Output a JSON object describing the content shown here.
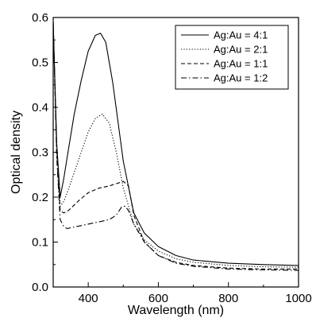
{
  "chart_data": {
    "type": "line",
    "xlabel": "Wavelength (nm)",
    "ylabel": "Optical density",
    "xlim": [
      300,
      1000
    ],
    "ylim": [
      0.0,
      0.6
    ],
    "xticks": [
      400,
      600,
      800,
      1000
    ],
    "xtick_labels": [
      "400",
      "600",
      "800",
      "1000"
    ],
    "yticks": [
      0.0,
      0.1,
      0.2,
      0.3,
      0.4,
      0.5,
      0.6
    ],
    "ytick_labels": [
      "0.0",
      "0.1",
      "0.2",
      "0.3",
      "0.4",
      "0.5",
      "0.6"
    ],
    "grid": false,
    "legend_position": "top-right",
    "series": [
      {
        "name": "Ag:Au = 4:1",
        "style": "solid",
        "x": [
          300,
          310,
          320,
          330,
          340,
          360,
          380,
          400,
          420,
          435,
          450,
          470,
          500,
          530,
          560,
          600,
          650,
          700,
          800,
          900,
          1000
        ],
        "y": [
          0.59,
          0.32,
          0.2,
          0.24,
          0.29,
          0.385,
          0.46,
          0.525,
          0.56,
          0.565,
          0.545,
          0.455,
          0.28,
          0.165,
          0.12,
          0.09,
          0.07,
          0.06,
          0.053,
          0.05,
          0.048
        ]
      },
      {
        "name": "Ag:Au = 2:1",
        "style": "dotted",
        "x": [
          300,
          310,
          320,
          330,
          340,
          360,
          380,
          400,
          420,
          440,
          460,
          480,
          500,
          530,
          560,
          600,
          650,
          700,
          800,
          900,
          1000
        ],
        "y": [
          0.59,
          0.32,
          0.18,
          0.19,
          0.21,
          0.255,
          0.3,
          0.345,
          0.375,
          0.385,
          0.365,
          0.3,
          0.22,
          0.14,
          0.105,
          0.08,
          0.063,
          0.055,
          0.048,
          0.045,
          0.044
        ]
      },
      {
        "name": "Ag:Au = 1:1",
        "style": "dashed",
        "x": [
          300,
          310,
          320,
          330,
          340,
          350,
          370,
          400,
          430,
          460,
          480,
          500,
          515,
          530,
          560,
          600,
          650,
          700,
          800,
          900,
          1000
        ],
        "y": [
          0.59,
          0.3,
          0.17,
          0.165,
          0.168,
          0.175,
          0.19,
          0.21,
          0.22,
          0.225,
          0.23,
          0.235,
          0.225,
          0.16,
          0.1,
          0.07,
          0.055,
          0.048,
          0.042,
          0.04,
          0.04
        ]
      },
      {
        "name": "Ag:Au = 1:2",
        "style": "dashdot",
        "x": [
          300,
          310,
          320,
          330,
          340,
          350,
          370,
          400,
          430,
          460,
          480,
          495,
          505,
          515,
          530,
          560,
          600,
          650,
          700,
          800,
          900,
          1000
        ],
        "y": [
          0.59,
          0.29,
          0.15,
          0.135,
          0.13,
          0.132,
          0.135,
          0.14,
          0.145,
          0.15,
          0.16,
          0.178,
          0.18,
          0.17,
          0.14,
          0.1,
          0.07,
          0.053,
          0.046,
          0.04,
          0.038,
          0.037
        ]
      }
    ]
  }
}
